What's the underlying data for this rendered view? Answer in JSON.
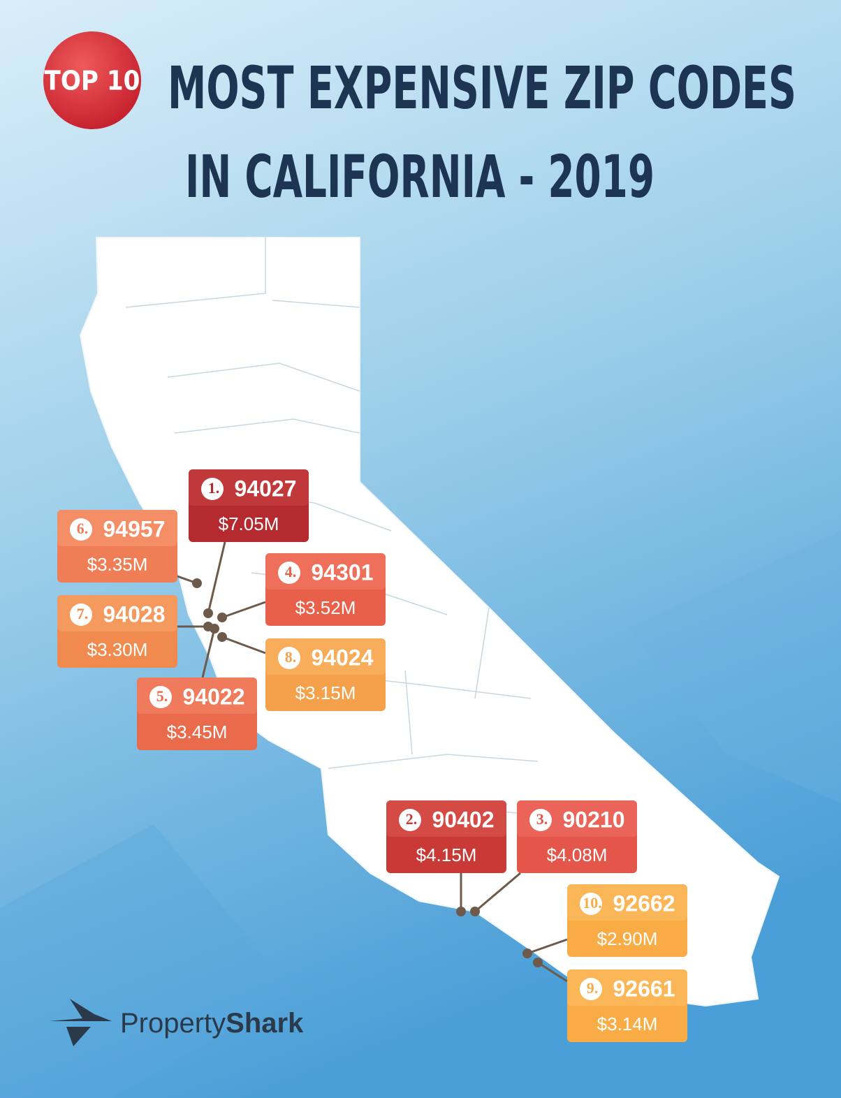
{
  "header": {
    "badge": "TOP 10",
    "title_line1": "MOST EXPENSIVE ZIP CODES",
    "title_line2": "IN CALIFORNIA - 2019"
  },
  "labels": [
    {
      "rank": "1.",
      "zip": "94027",
      "price": "$7.05M"
    },
    {
      "rank": "2.",
      "zip": "90402",
      "price": "$4.15M"
    },
    {
      "rank": "3.",
      "zip": "90210",
      "price": "$4.08M"
    },
    {
      "rank": "4.",
      "zip": "94301",
      "price": "$3.52M"
    },
    {
      "rank": "5.",
      "zip": "94022",
      "price": "$3.45M"
    },
    {
      "rank": "6.",
      "zip": "94957",
      "price": "$3.35M"
    },
    {
      "rank": "7.",
      "zip": "94028",
      "price": "$3.30M"
    },
    {
      "rank": "8.",
      "zip": "94024",
      "price": "$3.15M"
    },
    {
      "rank": "9.",
      "zip": "92661",
      "price": "$3.14M"
    },
    {
      "rank": "10.",
      "zip": "92662",
      "price": "$2.90M"
    }
  ],
  "logo": {
    "part1": "Property",
    "part2": "Shark"
  }
}
